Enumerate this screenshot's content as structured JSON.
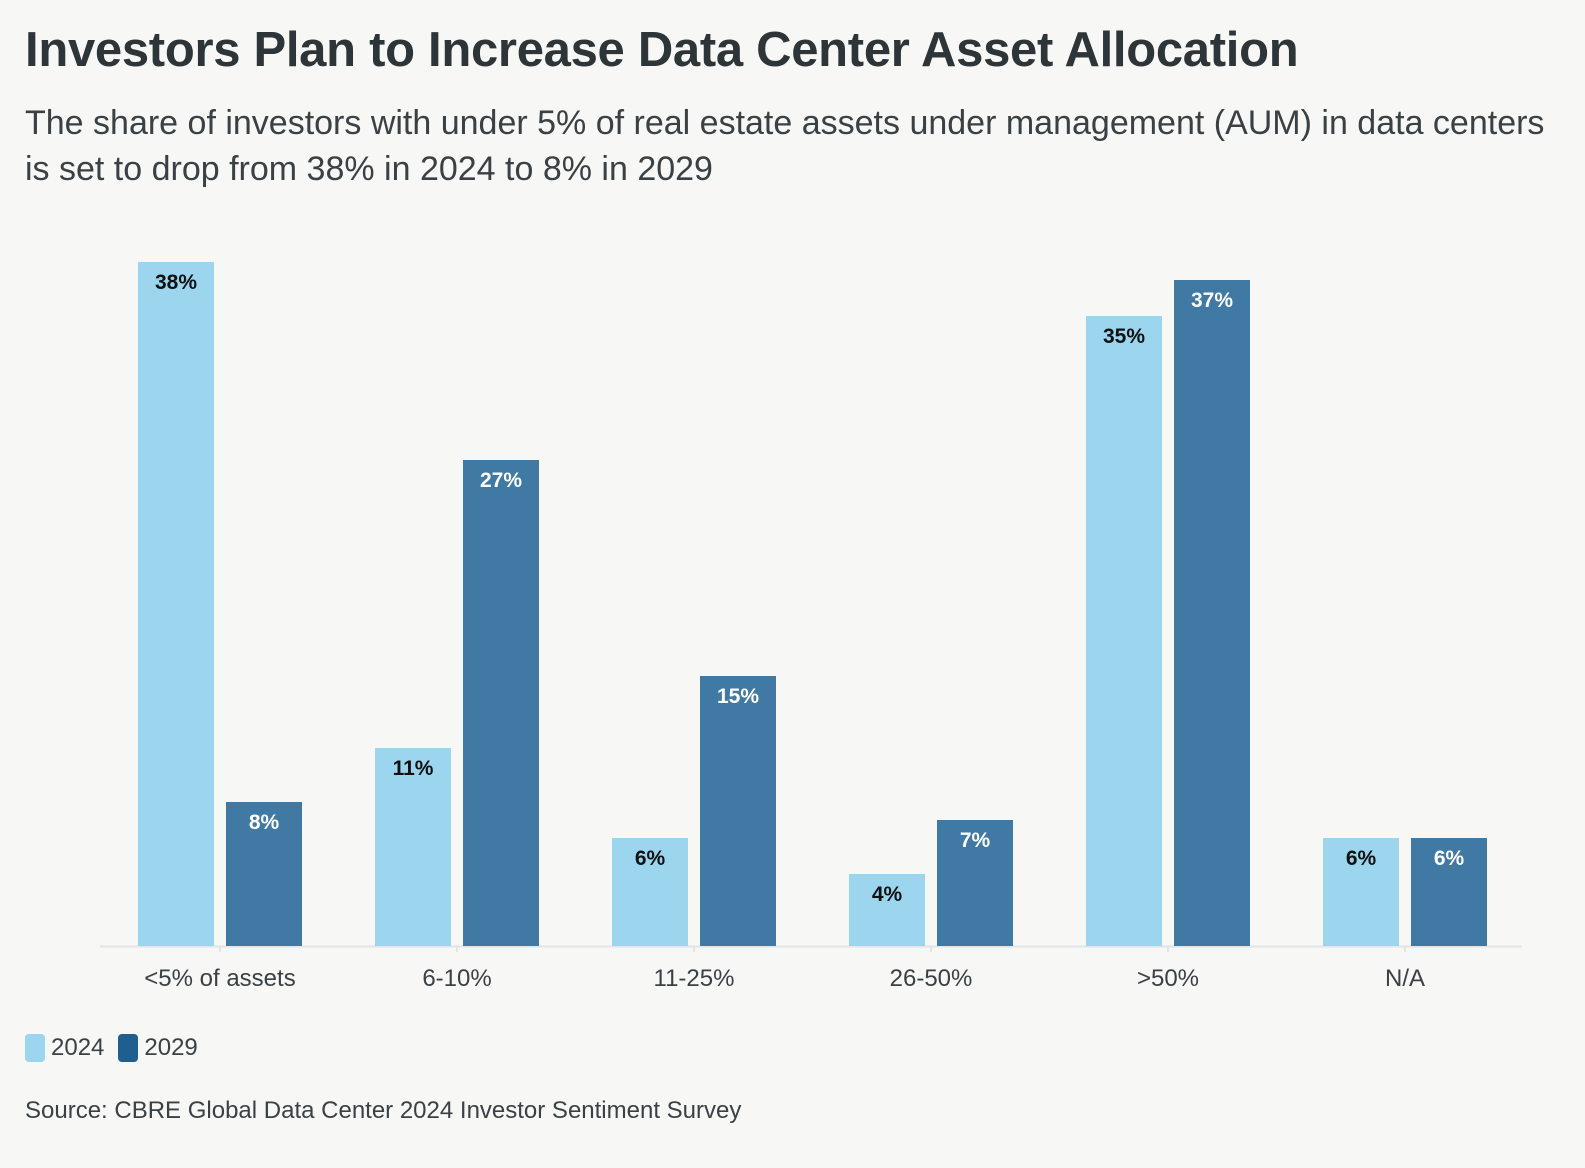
{
  "header": {
    "title": "Investors Plan to Increase Data Center Asset Allocation",
    "subtitle": "The share of investors with under 5% of real estate assets under management (AUM) in data centers is set to drop from 38% in 2024 to 8% in 2029"
  },
  "footer": {
    "source": "Source: CBRE Global Data Center 2024 Investor Sentiment Survey"
  },
  "colors": {
    "series_2024": "#9bd5ee",
    "series_2029": "#3f79a4",
    "legend_2029": "#1f5f8f",
    "label_on_light": "#111111",
    "label_on_dark": "#ffffff",
    "axis": "#e2e4e6"
  },
  "chart_data": {
    "type": "bar",
    "title": "Investors Plan to Increase Data Center Asset Allocation",
    "xlabel": "",
    "ylabel": "",
    "ylim": [
      0,
      38
    ],
    "grid": false,
    "legend_position": "bottom-left",
    "categories": [
      "<5% of assets",
      "6-10%",
      "11-25%",
      "26-50%",
      ">50%",
      "N/A"
    ],
    "series": [
      {
        "name": "2024",
        "values": [
          38,
          11,
          6,
          4,
          35,
          6
        ],
        "labels": [
          "38%",
          "11%",
          "6%",
          "4%",
          "35%",
          "6%"
        ]
      },
      {
        "name": "2029",
        "values": [
          8,
          27,
          15,
          7,
          37,
          6
        ],
        "labels": [
          "8%",
          "27%",
          "15%",
          "7%",
          "37%",
          "6%"
        ]
      }
    ]
  }
}
